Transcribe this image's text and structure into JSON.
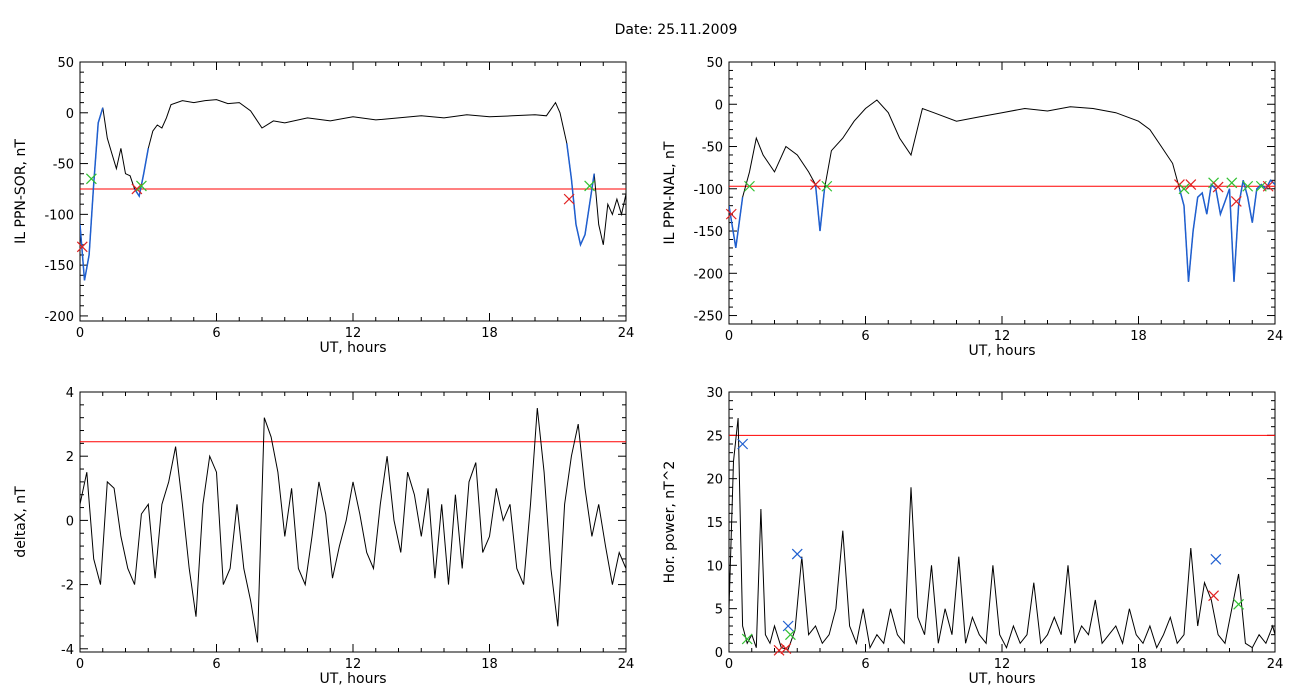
{
  "page_title": "Date:  25.11.2009",
  "colors": {
    "axis": "#000000",
    "data": "#000000",
    "threshold": "#ff0000",
    "blue": "#1f5fd0",
    "red_marker": "#e02020",
    "green_marker": "#30c030",
    "blue_marker": "#1f5fd0"
  },
  "chart_data": [
    {
      "type": "line",
      "ylabel": "IL PPN-SOR, nT",
      "xlabel": "UT, hours",
      "xlim": [
        0,
        24
      ],
      "ylim": [
        -205,
        50
      ],
      "xticks": [
        0,
        6,
        12,
        18,
        24
      ],
      "xtick_labels": [
        "0",
        "6",
        "12",
        "18",
        "24"
      ],
      "yticks": [
        -200,
        -150,
        -100,
        -50,
        0,
        50
      ],
      "ytick_labels": [
        "-200",
        "-150",
        "-100",
        "-50",
        "0",
        "50"
      ],
      "threshold": -75,
      "x": [
        0,
        0.2,
        0.4,
        0.6,
        0.8,
        1.0,
        1.2,
        1.4,
        1.6,
        1.8,
        2.0,
        2.2,
        2.4,
        2.6,
        2.8,
        3.0,
        3.2,
        3.4,
        3.6,
        3.8,
        4.0,
        4.5,
        5.0,
        5.5,
        6.0,
        6.5,
        7.0,
        7.5,
        8.0,
        8.5,
        9.0,
        10.0,
        11.0,
        12.0,
        13.0,
        14.0,
        15.0,
        16.0,
        17.0,
        18.0,
        19.0,
        20.0,
        20.5,
        20.9,
        21.1,
        21.4,
        21.6,
        21.8,
        22.0,
        22.2,
        22.4,
        22.6,
        22.8,
        23.0,
        23.2,
        23.4,
        23.6,
        23.8,
        24.0
      ],
      "values": [
        -110,
        -165,
        -140,
        -70,
        -10,
        5,
        -25,
        -40,
        -55,
        -35,
        -60,
        -62,
        -75,
        -82,
        -60,
        -35,
        -18,
        -12,
        -15,
        -5,
        8,
        12,
        10,
        12,
        13,
        9,
        10,
        2,
        -15,
        -8,
        -10,
        -5,
        -8,
        -4,
        -7,
        -5,
        -3,
        -5,
        -2,
        -4,
        -3,
        -2,
        -3,
        10,
        0,
        -30,
        -65,
        -110,
        -130,
        -120,
        -90,
        -60,
        -110,
        -130,
        -90,
        -100,
        -85,
        -100,
        -80
      ],
      "highlight_x": [
        0,
        1.0
      ],
      "highlight_x2": [
        2.4,
        3.0
      ],
      "highlight_x3": [
        21.4,
        22.6
      ],
      "markers": [
        {
          "x": 0.5,
          "y": -65,
          "kind": "green"
        },
        {
          "x": 2.5,
          "y": -75,
          "kind": "red"
        },
        {
          "x": 2.7,
          "y": -72,
          "kind": "green"
        },
        {
          "x": 21.5,
          "y": -85,
          "kind": "red"
        },
        {
          "x": 22.4,
          "y": -72,
          "kind": "green"
        },
        {
          "x": 0.1,
          "y": -132,
          "kind": "red"
        }
      ]
    },
    {
      "type": "line",
      "ylabel": "IL PPN-NAL, nT",
      "xlabel": "UT, hours",
      "xlim": [
        0,
        24
      ],
      "ylim": [
        -260,
        50
      ],
      "xticks": [
        0,
        6,
        12,
        18,
        24
      ],
      "xtick_labels": [
        "0",
        "6",
        "12",
        "18",
        "24"
      ],
      "yticks": [
        -250,
        -200,
        -150,
        -100,
        -50,
        0,
        50
      ],
      "ytick_labels": [
        "-250",
        "-200",
        "-150",
        "-100",
        "-50",
        "0",
        "50"
      ],
      "threshold": -97,
      "x": [
        0,
        0.3,
        0.6,
        0.9,
        1.2,
        1.5,
        2.0,
        2.5,
        3.0,
        3.5,
        3.8,
        4.0,
        4.2,
        4.5,
        5.0,
        5.5,
        6.0,
        6.5,
        7.0,
        7.5,
        8.0,
        8.5,
        9.0,
        10.0,
        11.0,
        12.0,
        13.0,
        14.0,
        15.0,
        16.0,
        17.0,
        18.0,
        18.5,
        19.0,
        19.5,
        19.8,
        20.0,
        20.2,
        20.4,
        20.6,
        20.8,
        21.0,
        21.2,
        21.4,
        21.6,
        21.8,
        22.0,
        22.2,
        22.4,
        22.6,
        22.8,
        23.0,
        23.2,
        23.4,
        23.6,
        23.8,
        24.0
      ],
      "values": [
        -120,
        -170,
        -110,
        -80,
        -40,
        -60,
        -80,
        -50,
        -60,
        -80,
        -95,
        -150,
        -100,
        -55,
        -40,
        -20,
        -5,
        5,
        -10,
        -40,
        -60,
        -5,
        -10,
        -20,
        -15,
        -10,
        -5,
        -8,
        -3,
        -5,
        -10,
        -20,
        -30,
        -50,
        -70,
        -100,
        -120,
        -210,
        -150,
        -110,
        -105,
        -130,
        -95,
        -100,
        -130,
        -115,
        -100,
        -210,
        -120,
        -90,
        -110,
        -140,
        -100,
        -95,
        -100,
        -90,
        -95
      ],
      "highlight_x": [
        0,
        0.8
      ],
      "highlight_x2": [
        3.6,
        4.4
      ],
      "highlight_x3": [
        19.6,
        24
      ],
      "markers": [
        {
          "x": 0.1,
          "y": -130,
          "kind": "red"
        },
        {
          "x": 0.9,
          "y": -97,
          "kind": "green"
        },
        {
          "x": 3.8,
          "y": -95,
          "kind": "red"
        },
        {
          "x": 4.3,
          "y": -97,
          "kind": "green"
        },
        {
          "x": 19.8,
          "y": -95,
          "kind": "red"
        },
        {
          "x": 20.0,
          "y": -100,
          "kind": "green"
        },
        {
          "x": 20.3,
          "y": -95,
          "kind": "red"
        },
        {
          "x": 21.3,
          "y": -93,
          "kind": "green"
        },
        {
          "x": 21.5,
          "y": -98,
          "kind": "red"
        },
        {
          "x": 22.1,
          "y": -93,
          "kind": "green"
        },
        {
          "x": 22.3,
          "y": -115,
          "kind": "red"
        },
        {
          "x": 22.8,
          "y": -97,
          "kind": "green"
        },
        {
          "x": 23.4,
          "y": -97,
          "kind": "green"
        },
        {
          "x": 23.7,
          "y": -97,
          "kind": "red"
        }
      ]
    },
    {
      "type": "line",
      "ylabel": "deltaX, nT",
      "xlabel": "UT, hours",
      "xlim": [
        0,
        24
      ],
      "ylim": [
        -4.1,
        4
      ],
      "xticks": [
        0,
        6,
        12,
        18,
        24
      ],
      "xtick_labels": [
        "0",
        "6",
        "12",
        "18",
        "24"
      ],
      "yticks": [
        -4,
        -2,
        0,
        2,
        4
      ],
      "ytick_labels": [
        "-4",
        "-2",
        "0",
        "2",
        "4"
      ],
      "threshold": 2.45,
      "x": [
        0,
        0.3,
        0.6,
        0.9,
        1.2,
        1.5,
        1.8,
        2.1,
        2.4,
        2.7,
        3.0,
        3.3,
        3.6,
        3.9,
        4.2,
        4.5,
        4.8,
        5.1,
        5.4,
        5.7,
        6.0,
        6.3,
        6.6,
        6.9,
        7.2,
        7.5,
        7.8,
        8.1,
        8.4,
        8.7,
        9.0,
        9.3,
        9.6,
        9.9,
        10.2,
        10.5,
        10.8,
        11.1,
        11.4,
        11.7,
        12.0,
        12.3,
        12.6,
        12.9,
        13.2,
        13.5,
        13.8,
        14.1,
        14.4,
        14.7,
        15.0,
        15.3,
        15.6,
        15.9,
        16.2,
        16.5,
        16.8,
        17.1,
        17.4,
        17.7,
        18.0,
        18.3,
        18.6,
        18.9,
        19.2,
        19.5,
        19.8,
        20.1,
        20.4,
        20.7,
        21.0,
        21.3,
        21.6,
        21.9,
        22.2,
        22.5,
        22.8,
        23.1,
        23.4,
        23.7,
        24.0
      ],
      "values": [
        0.5,
        1.5,
        -1.2,
        -2.0,
        1.2,
        1.0,
        -0.5,
        -1.5,
        -2.0,
        0.2,
        0.5,
        -1.8,
        0.5,
        1.2,
        2.3,
        0.5,
        -1.5,
        -3.0,
        0.5,
        2.0,
        1.5,
        -2.0,
        -1.5,
        0.5,
        -1.5,
        -2.5,
        -3.8,
        3.2,
        2.6,
        1.5,
        -0.5,
        1.0,
        -1.5,
        -2.0,
        -0.5,
        1.2,
        0.2,
        -1.8,
        -0.8,
        0.0,
        1.2,
        0.2,
        -1.0,
        -1.5,
        0.5,
        2.0,
        0.0,
        -1.0,
        1.5,
        0.8,
        -0.5,
        1.0,
        -1.8,
        0.5,
        -2.0,
        0.8,
        -1.5,
        1.2,
        1.8,
        -1.0,
        -0.5,
        1.0,
        0.0,
        0.5,
        -1.5,
        -2.0,
        0.5,
        3.5,
        1.5,
        -1.5,
        -3.3,
        0.5,
        2.0,
        3.0,
        1.0,
        -0.5,
        0.5,
        -0.8,
        -2.0,
        -1.0,
        -1.5
      ]
    },
    {
      "type": "line",
      "ylabel": "Hor. power, nT^2",
      "xlabel": "UT, hours",
      "xlim": [
        0,
        24
      ],
      "ylim": [
        0,
        30
      ],
      "xticks": [
        0,
        6,
        12,
        18,
        24
      ],
      "xtick_labels": [
        "0",
        "6",
        "12",
        "18",
        "24"
      ],
      "yticks": [
        0,
        5,
        10,
        15,
        20,
        25,
        30
      ],
      "ytick_labels": [
        "0",
        "5",
        "10",
        "15",
        "20",
        "25",
        "30"
      ],
      "threshold": 25,
      "x": [
        0,
        0.2,
        0.4,
        0.6,
        0.8,
        1.0,
        1.2,
        1.4,
        1.6,
        1.8,
        2.0,
        2.3,
        2.6,
        2.9,
        3.2,
        3.5,
        3.8,
        4.1,
        4.4,
        4.7,
        5.0,
        5.3,
        5.6,
        5.9,
        6.2,
        6.5,
        6.8,
        7.1,
        7.4,
        7.7,
        8.0,
        8.3,
        8.6,
        8.9,
        9.2,
        9.5,
        9.8,
        10.1,
        10.4,
        10.7,
        11.0,
        11.3,
        11.6,
        11.9,
        12.2,
        12.5,
        12.8,
        13.1,
        13.4,
        13.7,
        14.0,
        14.3,
        14.6,
        14.9,
        15.2,
        15.5,
        15.8,
        16.1,
        16.4,
        16.7,
        17.0,
        17.3,
        17.6,
        17.9,
        18.2,
        18.5,
        18.8,
        19.1,
        19.4,
        19.7,
        20.0,
        20.3,
        20.6,
        20.9,
        21.2,
        21.5,
        21.8,
        22.1,
        22.4,
        22.7,
        23.0,
        23.3,
        23.6,
        23.9,
        24.0
      ],
      "values": [
        5,
        22,
        27,
        3,
        1,
        2,
        0.5,
        16.5,
        2,
        1,
        3,
        0.5,
        0.3,
        2.5,
        11,
        2,
        3,
        1,
        2,
        5,
        14,
        3,
        1,
        5,
        0.5,
        2,
        1,
        5,
        2,
        1,
        19,
        4,
        2,
        10,
        1,
        5,
        2,
        11,
        1,
        4,
        2,
        1,
        10,
        2,
        0.5,
        3,
        1,
        2,
        8,
        1,
        2,
        4,
        2,
        10,
        1,
        3,
        2,
        6,
        1,
        2,
        3,
        1,
        5,
        2,
        1,
        3,
        0.5,
        2,
        4,
        1,
        2,
        12,
        3,
        8,
        6,
        2,
        1,
        5,
        9,
        1,
        0.5,
        2,
        1,
        3,
        2
      ],
      "markers": [
        {
          "x": 0.6,
          "y": 24,
          "kind": "blue"
        },
        {
          "x": 0.8,
          "y": 1.5,
          "kind": "green"
        },
        {
          "x": 2.2,
          "y": 0.2,
          "kind": "red"
        },
        {
          "x": 2.5,
          "y": 0.4,
          "kind": "red"
        },
        {
          "x": 2.6,
          "y": 3.0,
          "kind": "blue"
        },
        {
          "x": 2.7,
          "y": 2.0,
          "kind": "green"
        },
        {
          "x": 3.0,
          "y": 11.3,
          "kind": "blue"
        },
        {
          "x": 21.4,
          "y": 10.7,
          "kind": "blue"
        },
        {
          "x": 21.3,
          "y": 6.5,
          "kind": "red"
        },
        {
          "x": 22.4,
          "y": 5.5,
          "kind": "green"
        }
      ]
    }
  ]
}
